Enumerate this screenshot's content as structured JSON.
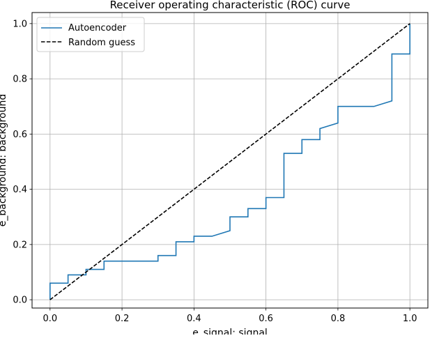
{
  "chart_data": {
    "type": "line",
    "title": "Receiver operating characteristic (ROC) curve",
    "xlabel": "e_signal: signal",
    "ylabel": "e_background: background",
    "xlim": [
      -0.05,
      1.05
    ],
    "ylim": [
      -0.03,
      1.04
    ],
    "xticks": [
      0.0,
      0.2,
      0.4,
      0.6,
      0.8,
      1.0
    ],
    "yticks": [
      0.0,
      0.2,
      0.4,
      0.6,
      0.8,
      1.0
    ],
    "xtick_labels": [
      "0.0",
      "0.2",
      "0.4",
      "0.6",
      "0.8",
      "1.0"
    ],
    "ytick_labels": [
      "0.0",
      "0.2",
      "0.4",
      "0.6",
      "0.8",
      "1.0"
    ],
    "grid": true,
    "legend_position": "top-left",
    "series": [
      {
        "name": "Autoencoder",
        "color": "#1f77b4",
        "style": "solid",
        "x": [
          0.0,
          0.0,
          0.05,
          0.05,
          0.1,
          0.1,
          0.15,
          0.15,
          0.3,
          0.3,
          0.35,
          0.35,
          0.4,
          0.4,
          0.45,
          0.5,
          0.5,
          0.55,
          0.55,
          0.6,
          0.6,
          0.65,
          0.65,
          0.7,
          0.7,
          0.75,
          0.75,
          0.8,
          0.8,
          0.9,
          0.95,
          0.95,
          1.0,
          1.0
        ],
        "y": [
          0.0,
          0.06,
          0.06,
          0.09,
          0.09,
          0.11,
          0.11,
          0.14,
          0.14,
          0.16,
          0.16,
          0.21,
          0.21,
          0.23,
          0.23,
          0.25,
          0.3,
          0.3,
          0.33,
          0.33,
          0.37,
          0.37,
          0.53,
          0.53,
          0.58,
          0.58,
          0.62,
          0.64,
          0.7,
          0.7,
          0.72,
          0.89,
          0.89,
          1.0
        ]
      },
      {
        "name": "Random guess",
        "color": "#000000",
        "style": "dashed",
        "x": [
          0.0,
          1.0
        ],
        "y": [
          0.0,
          1.0
        ]
      }
    ]
  }
}
